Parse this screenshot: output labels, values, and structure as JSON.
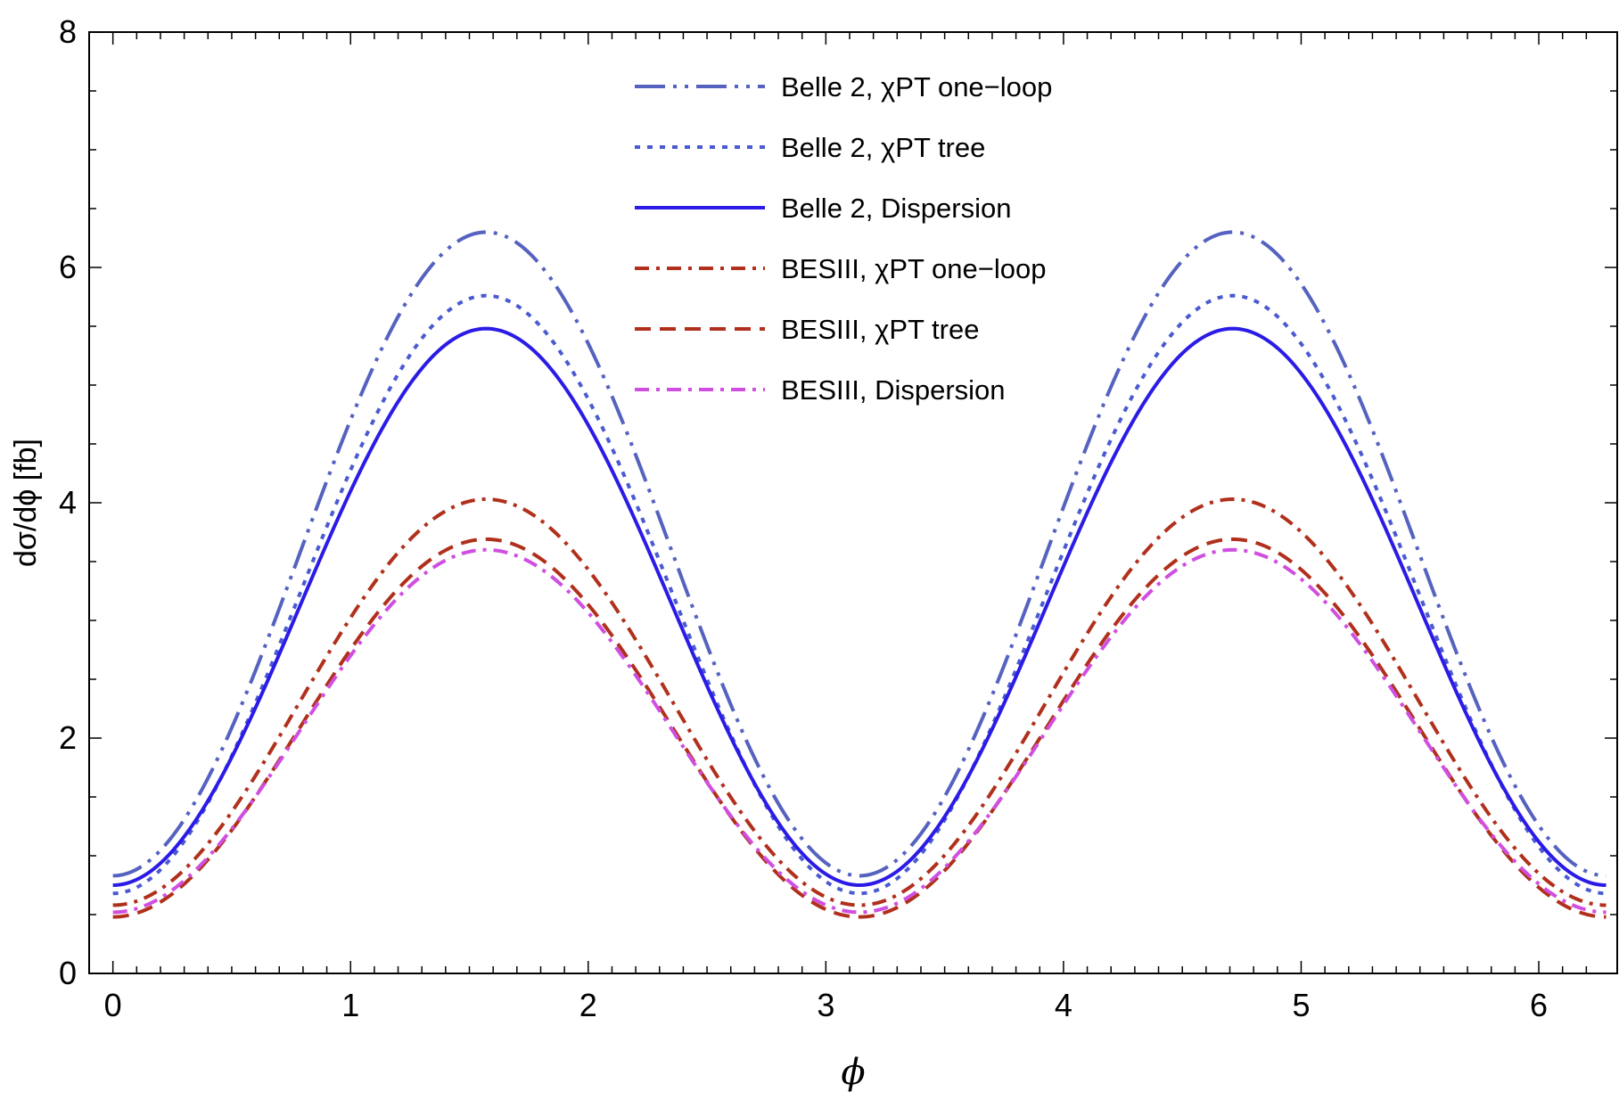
{
  "chart_data": {
    "type": "line",
    "title": "",
    "xlabel": "ϕ",
    "ylabel": "dσ/dϕ [fb]",
    "xlim": [
      -0.1,
      6.33
    ],
    "ylim": [
      0,
      8
    ],
    "xticks": [
      0,
      1,
      2,
      3,
      4,
      5,
      6
    ],
    "yticks": [
      0,
      2,
      4,
      6,
      8
    ],
    "legend_position": "top-center",
    "grid": false,
    "series": [
      {
        "name": "Belle 2, χPT one−loop",
        "min": 0.83,
        "max": 6.3,
        "color": "#5562c0",
        "dash": "long-dash-dot-dot"
      },
      {
        "name": "Belle 2, χPT tree",
        "min": 0.68,
        "max": 5.76,
        "color": "#4a5ad0",
        "dash": "dotted"
      },
      {
        "name": "Belle 2, Dispersion",
        "min": 0.75,
        "max": 5.48,
        "color": "#2b1be6",
        "dash": "solid"
      },
      {
        "name": "BESIII, χPT one−loop",
        "min": 0.58,
        "max": 4.03,
        "color": "#b0301c",
        "dash": "dash-dot"
      },
      {
        "name": "BESIII, χPT tree",
        "min": 0.48,
        "max": 3.69,
        "color": "#b0301c",
        "dash": "dashed"
      },
      {
        "name": "BESIII, Dispersion",
        "min": 0.52,
        "max": 3.6,
        "color": "#cf4fe0",
        "dash": "dash-dot"
      }
    ],
    "model": "y(ϕ) = min + (max − min)·sin²(ϕ), ϕ ∈ [0, 2π]"
  },
  "axis_labels": {
    "x_ticks": [
      "0",
      "1",
      "2",
      "3",
      "4",
      "5",
      "6"
    ],
    "y_ticks": [
      "0",
      "2",
      "4",
      "6",
      "8"
    ]
  }
}
